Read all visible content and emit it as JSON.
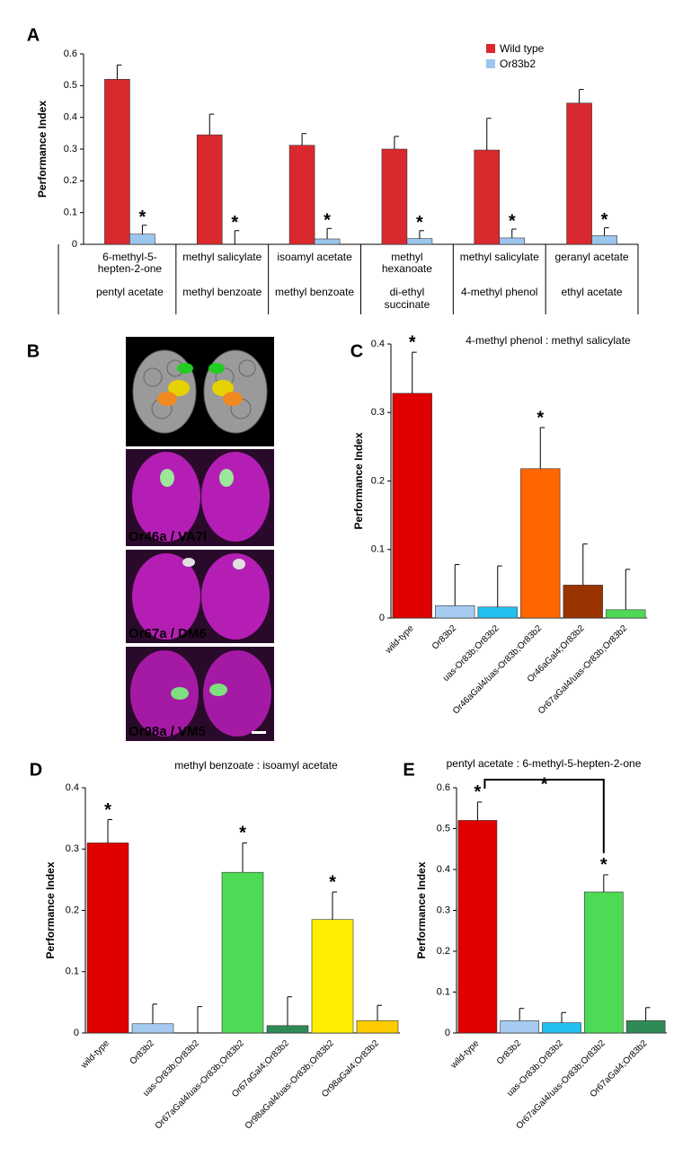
{
  "chart_data": [
    {
      "type": "grouped_bar",
      "panel": "A",
      "y_label": "Performance Index",
      "categories": [
        {
          "top": [
            "6-methyl-5-",
            "hepten-2-one"
          ],
          "bottom": [
            "pentyl acetate"
          ]
        },
        {
          "top": [
            "methyl salicylate"
          ],
          "bottom": [
            "methyl benzoate"
          ]
        },
        {
          "top": [
            "isoamyl acetate"
          ],
          "bottom": [
            "methyl benzoate"
          ]
        },
        {
          "top": [
            "methyl",
            "hexanoate"
          ],
          "bottom": [
            "di-ethyl",
            "succinate"
          ]
        },
        {
          "top": [
            "methyl salicylate"
          ],
          "bottom": [
            "4-methyl phenol"
          ]
        },
        {
          "top": [
            "geranyl acetate"
          ],
          "bottom": [
            "ethyl acetate"
          ]
        }
      ],
      "series": [
        {
          "name": "Wild type",
          "color": "#d9292e",
          "values": [
            0.52,
            0.345,
            0.312,
            0.3,
            0.297,
            0.445
          ],
          "errors": [
            0.045,
            0.065,
            0.037,
            0.04,
            0.1,
            0.043
          ],
          "significance": [
            null,
            null,
            null,
            null,
            null,
            null
          ]
        },
        {
          "name": "Or83b2",
          "color": "#9cc6ee",
          "values": [
            0.032,
            0,
            0.017,
            0.018,
            0.02,
            0.027
          ],
          "errors": [
            0.028,
            0.043,
            0.033,
            0.025,
            0.028,
            0.025
          ],
          "significance": [
            "*",
            "*",
            "*",
            "*",
            "*",
            "*"
          ]
        }
      ],
      "ylim": [
        0,
        0.6
      ],
      "yticks": [
        0,
        0.1,
        0.2,
        0.3,
        0.4,
        0.5,
        0.6
      ]
    },
    {
      "type": "bar",
      "panel": "C",
      "title": "4-methyl phenol : methyl salicylate",
      "y_label": "Performance Index",
      "categories": [
        "wild-type",
        "Or83b2",
        "uas-Or83b;Or83b2",
        "Or46aGal4/uas-Or83b;Or83b2",
        "Or46aGal4;Or83b2",
        "Or67aGal4/uas-Or83b;Or83b2"
      ],
      "values": [
        0.328,
        0.018,
        0.016,
        0.218,
        0.048,
        0.012
      ],
      "errors": [
        0.06,
        0.06,
        0.06,
        0.06,
        0.06,
        0.059
      ],
      "colors": [
        "#e00000",
        "#a6cbf0",
        "#22c0ee",
        "#ff6600",
        "#993300",
        "#4ddb55"
      ],
      "significance": [
        "*",
        null,
        null,
        "*",
        null,
        null
      ],
      "ylim": [
        0,
        0.4
      ],
      "yticks": [
        0,
        0.1,
        0.2,
        0.3,
        0.4
      ]
    },
    {
      "type": "bar",
      "panel": "D",
      "title": "methyl benzoate : isoamyl acetate",
      "y_label": "Performance Index",
      "categories": [
        "wild-type",
        "Or83b2",
        "uas-Or83b;Or83b2",
        "Or67aGal4/uas-Or83b;Or83b2",
        "Or67aGal4;Or83b2",
        "Or98aGal4/uas-Or83b;Or83b2",
        "Or98aGal4;Or83b2"
      ],
      "values": [
        0.31,
        0.015,
        0,
        0.262,
        0.012,
        0.185,
        0.02
      ],
      "errors": [
        0.038,
        0.032,
        0.043,
        0.048,
        0.047,
        0.045,
        0.025
      ],
      "colors": [
        "#e00000",
        "#a6cbf0",
        "#22c0ee",
        "#4ddb55",
        "#2e8b57",
        "#ffee00",
        "#ffcc00"
      ],
      "significance": [
        "*",
        null,
        null,
        "*",
        null,
        "*",
        null
      ],
      "ylim": [
        0,
        0.4
      ],
      "yticks": [
        0,
        0.1,
        0.2,
        0.3,
        0.4
      ]
    },
    {
      "type": "bar",
      "panel": "E",
      "title": "pentyl acetate : 6-methyl-5-hepten-2-one",
      "y_label": "Performance Index",
      "categories": [
        "wild-type",
        "Or83b2",
        "uas-Or83b;Or83b2",
        "Or67aGal4/uas-Or83b;Or83b2",
        "Or67aGal4;Or83b2"
      ],
      "values": [
        0.52,
        0.03,
        0.025,
        0.345,
        0.03
      ],
      "errors": [
        0.045,
        0.03,
        0.025,
        0.042,
        0.032
      ],
      "colors": [
        "#e00000",
        "#a6cbf0",
        "#22c0ee",
        "#4ddb55",
        "#2e8b57"
      ],
      "significance": [
        "*",
        null,
        null,
        "*",
        null
      ],
      "bracket": {
        "text": "*",
        "categories": [
          0,
          3
        ]
      },
      "ylim": [
        0,
        0.6
      ],
      "yticks": [
        0,
        0.1,
        0.2,
        0.3,
        0.4,
        0.5,
        0.6
      ]
    }
  ],
  "figure_b": {
    "panel": "B",
    "labels": [
      {
        "text": "Or46a / VA7l",
        "color": "#ff8c1a"
      },
      {
        "text": "Or67a / DM6",
        "color": "#33dd33"
      },
      {
        "text": "Or98a / VM5",
        "color": "#ffdd00"
      }
    ]
  }
}
